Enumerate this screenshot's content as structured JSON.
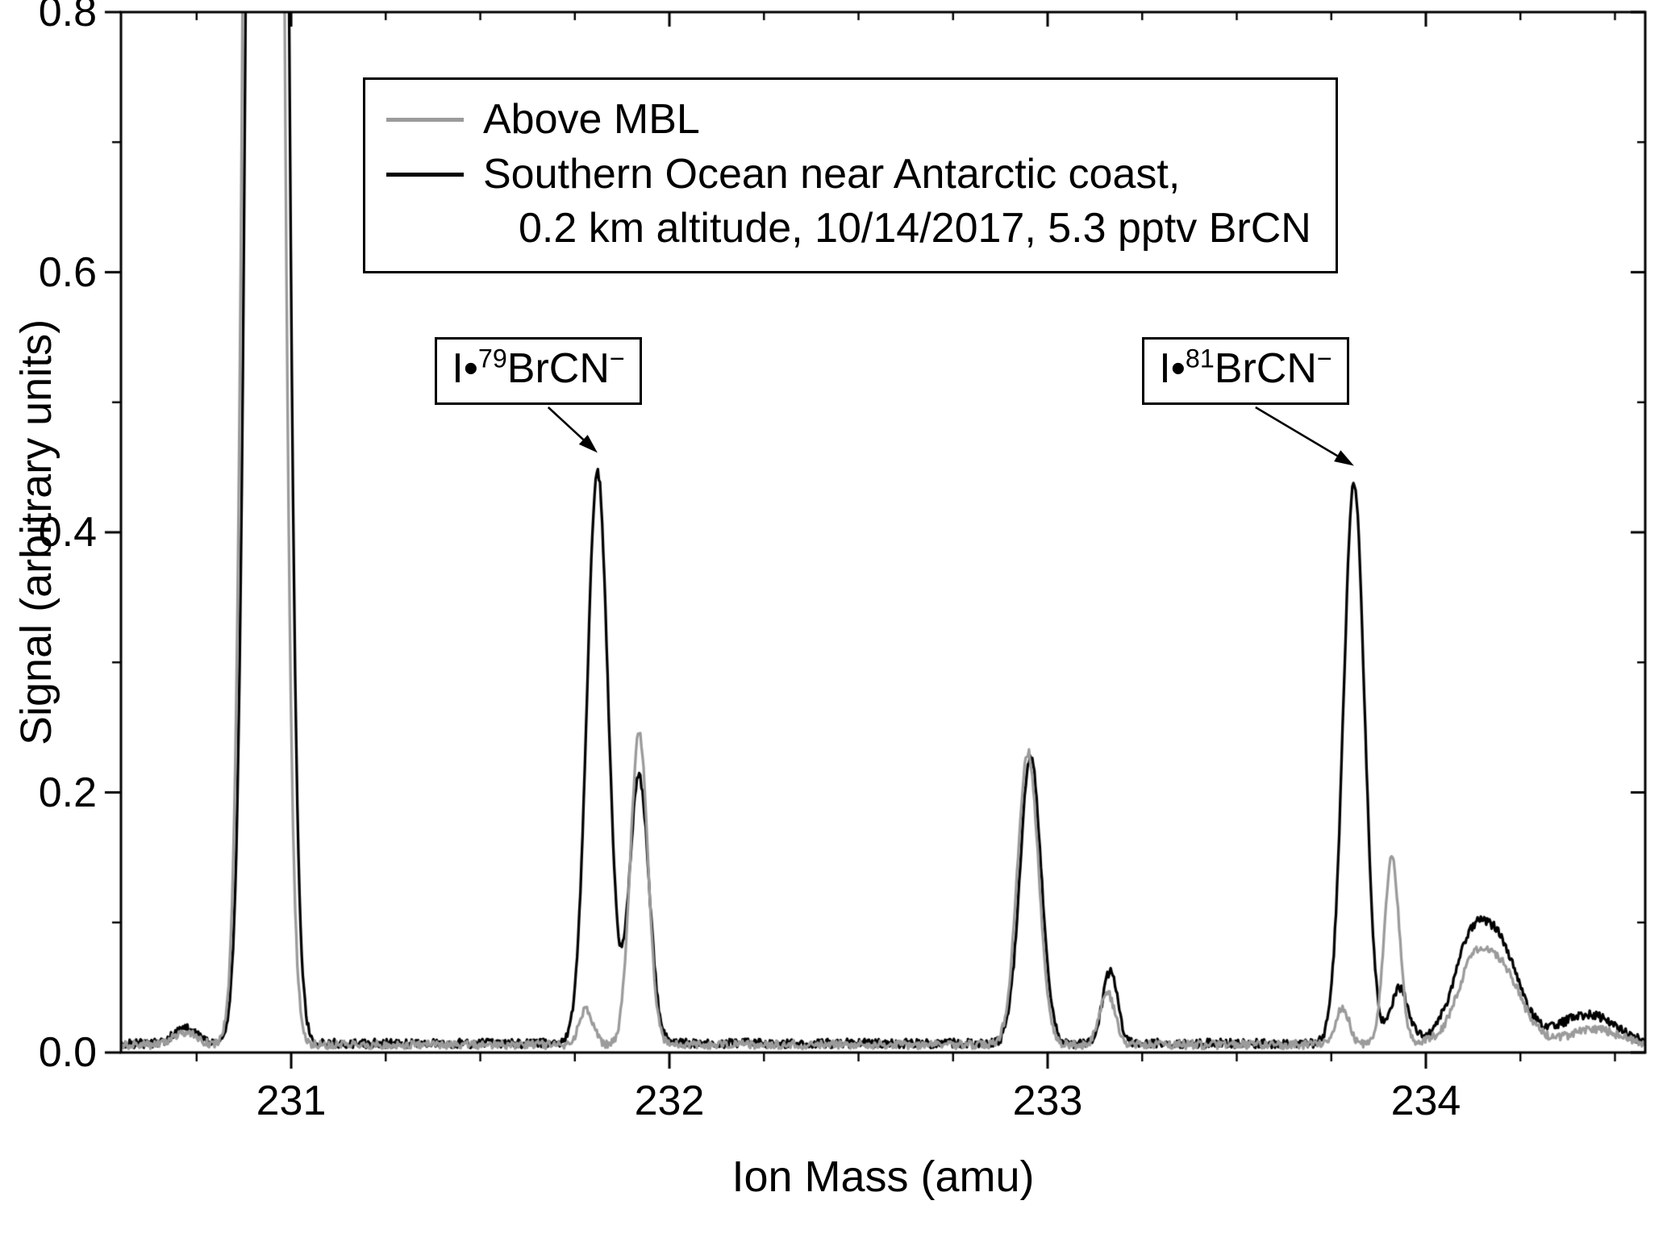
{
  "chart_data": {
    "type": "line",
    "title": "",
    "xlabel": "Ion Mass (amu)",
    "ylabel": "Signal (arbitrary units)",
    "xlim": [
      230.55,
      234.58
    ],
    "ylim": [
      0,
      0.8
    ],
    "x_tick_values": [
      231,
      232,
      233,
      234
    ],
    "x_tick_labels": [
      "231",
      "232",
      "233",
      "234"
    ],
    "x_minor_step": 0.25,
    "y_tick_values": [
      0,
      0.2,
      0.4,
      0.6,
      0.8
    ],
    "y_tick_labels": [
      "0.0",
      "0.2",
      "0.4",
      "0.6",
      "0.8"
    ],
    "y_minor_step": 0.1,
    "grid": false,
    "legend_position": "upper-center-inside",
    "series": [
      {
        "name": "Above MBL",
        "legend_lines": [
          "Above MBL"
        ],
        "color": "#9b9b9b",
        "baseline": 0.006,
        "noise": 0.0032,
        "seed": 3,
        "peaks_chw": [
          [
            230.72,
            0.01,
            0.03
          ],
          [
            230.927,
            4.0,
            0.031
          ],
          [
            231.78,
            0.028,
            0.018
          ],
          [
            231.92,
            0.24,
            0.023
          ],
          [
            232.948,
            0.225,
            0.028
          ],
          [
            233.158,
            0.04,
            0.02
          ],
          [
            233.78,
            0.028,
            0.018
          ],
          [
            233.91,
            0.145,
            0.02
          ],
          [
            234.125,
            0.045,
            0.04
          ],
          [
            234.205,
            0.038,
            0.045
          ],
          [
            234.17,
            0.02,
            0.09
          ],
          [
            234.45,
            0.012,
            0.06
          ]
        ]
      },
      {
        "name": "Southern Ocean near Antarctic coast, 0.2 km altitude, 10/14/2017, 5.3 pptv BrCN",
        "legend_lines": [
          "Southern Ocean near Antarctic coast,",
          "0.2 km altitude, 10/14/2017, 5.3 pptv BrCN"
        ],
        "color": "#000000",
        "baseline": 0.007,
        "noise": 0.0035,
        "seed": 7,
        "peaks_chw": [
          [
            230.72,
            0.012,
            0.03
          ],
          [
            230.937,
            4.0,
            0.032
          ],
          [
            231.81,
            0.44,
            0.028
          ],
          [
            231.92,
            0.205,
            0.026
          ],
          [
            232.955,
            0.22,
            0.028
          ],
          [
            233.165,
            0.055,
            0.02
          ],
          [
            233.81,
            0.43,
            0.028
          ],
          [
            233.93,
            0.042,
            0.022
          ],
          [
            234.115,
            0.05,
            0.04
          ],
          [
            234.195,
            0.05,
            0.045
          ],
          [
            234.16,
            0.03,
            0.09
          ],
          [
            234.43,
            0.022,
            0.07
          ]
        ]
      }
    ],
    "annotations": [
      {
        "prefix": "I•",
        "isotope": "79",
        "formula": "BrCN",
        "charge": "−",
        "target_x": 231.81,
        "target_y": 0.455,
        "box_x": 231.38,
        "box_y": 0.55
      },
      {
        "prefix": "I•",
        "isotope": "81",
        "formula": "BrCN",
        "charge": "−",
        "target_x": 233.81,
        "target_y": 0.445,
        "box_x": 233.25,
        "box_y": 0.55
      }
    ]
  }
}
